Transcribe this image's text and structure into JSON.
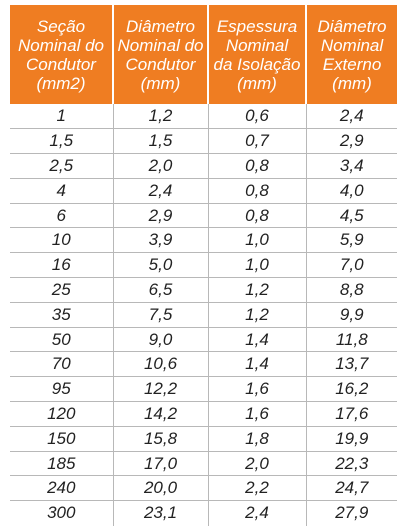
{
  "table": {
    "headers": [
      {
        "lines": [
          "Seção",
          "Nominal do",
          "Condutor",
          "(mm2)"
        ]
      },
      {
        "lines": [
          "Diâmetro",
          "Nominal do",
          "Condutor",
          "(mm)"
        ]
      },
      {
        "lines": [
          "Espessura",
          "Nominal",
          "da Isolação",
          "(mm)"
        ]
      },
      {
        "lines": [
          "Diâmetro",
          "Nominal",
          "Externo",
          "(mm)"
        ]
      }
    ],
    "rows": [
      [
        "1",
        "1,2",
        "0,6",
        "2,4"
      ],
      [
        "1,5",
        "1,5",
        "0,7",
        "2,9"
      ],
      [
        "2,5",
        "2,0",
        "0,8",
        "3,4"
      ],
      [
        "4",
        "2,4",
        "0,8",
        "4,0"
      ],
      [
        "6",
        "2,9",
        "0,8",
        "4,5"
      ],
      [
        "10",
        "3,9",
        "1,0",
        "5,9"
      ],
      [
        "16",
        "5,0",
        "1,0",
        "7,0"
      ],
      [
        "25",
        "6,5",
        "1,2",
        "8,8"
      ],
      [
        "35",
        "7,5",
        "1,2",
        "9,9"
      ],
      [
        "50",
        "9,0",
        "1,4",
        "11,8"
      ],
      [
        "70",
        "10,6",
        "1,4",
        "13,7"
      ],
      [
        "95",
        "12,2",
        "1,6",
        "16,2"
      ],
      [
        "120",
        "14,2",
        "1,6",
        "17,6"
      ],
      [
        "150",
        "15,8",
        "1,8",
        "19,9"
      ],
      [
        "185",
        "17,0",
        "2,0",
        "22,3"
      ],
      [
        "240",
        "20,0",
        "2,2",
        "24,7"
      ],
      [
        "300",
        "23,1",
        "2,4",
        "27,9"
      ]
    ]
  },
  "colors": {
    "header_background": "#ef7d22",
    "header_text": "#ffffff",
    "body_text": "#222222",
    "grid_lines": "#b8b8b8"
  }
}
